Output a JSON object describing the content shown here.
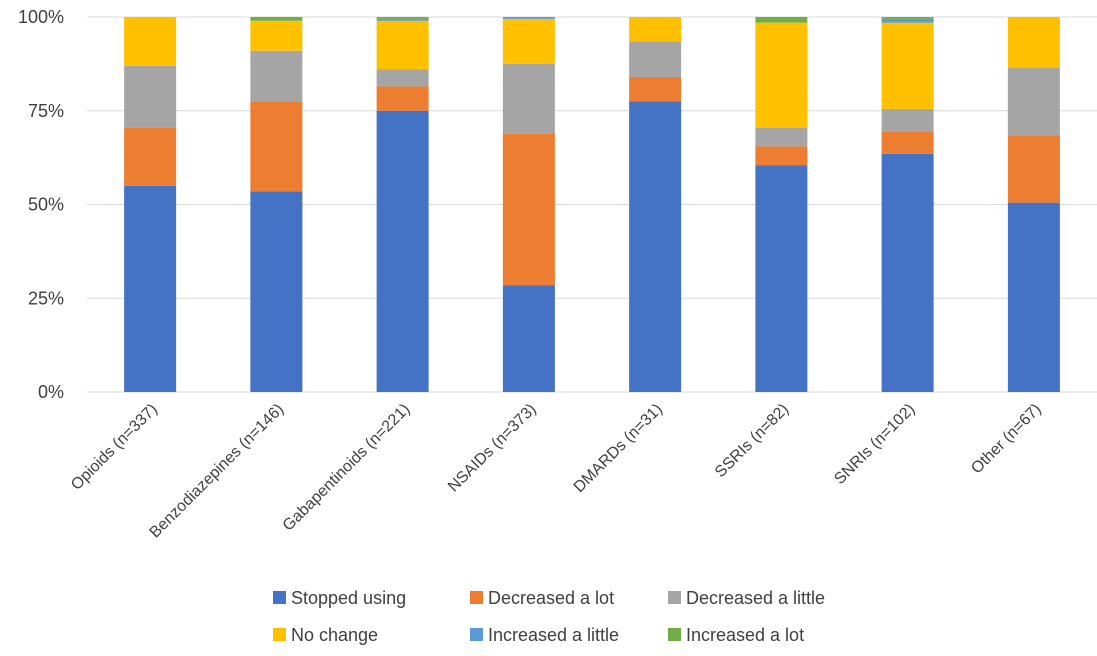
{
  "chart_data": {
    "type": "bar",
    "stacked": true,
    "percent": true,
    "categories": [
      "Opioids (n=337)",
      "Benzodiazepines (n=146)",
      "Gabapentinoids (n=221)",
      "NSAIDs (n=373)",
      "DMARDs (n=31)",
      "SSRIs (n=82)",
      "SNRIs (n=102)",
      "Other (n=67)"
    ],
    "series": [
      {
        "name": "Stopped using",
        "color": "#4472c4",
        "values": [
          55,
          53.5,
          75,
          28.5,
          77.5,
          60.5,
          63.5,
          50.5
        ]
      },
      {
        "name": "Decreased a lot",
        "color": "#ed7d31",
        "values": [
          15.5,
          24,
          6.5,
          40.5,
          6.5,
          5,
          6,
          18
        ]
      },
      {
        "name": "Decreased a little",
        "color": "#a5a5a5",
        "values": [
          16.5,
          13.5,
          4.5,
          18.5,
          9.5,
          5,
          6,
          18
        ]
      },
      {
        "name": "No change",
        "color": "#ffc000",
        "values": [
          13,
          8,
          13,
          12,
          6.5,
          28,
          23,
          13.5
        ]
      },
      {
        "name": "Increased a little",
        "color": "#5b9bd5",
        "values": [
          0,
          0,
          0.5,
          0.5,
          0,
          0,
          1,
          0
        ]
      },
      {
        "name": "Increased a lot",
        "color": "#70ad47",
        "values": [
          0,
          1,
          0.5,
          0,
          0,
          1.5,
          0.5,
          0
        ]
      }
    ],
    "yticks": [
      "0%",
      "25%",
      "50%",
      "75%",
      "100%"
    ],
    "ylim": [
      0,
      100
    ],
    "title": "",
    "xlabel": "",
    "ylabel": "",
    "legend_position": "bottom",
    "grid": true
  }
}
